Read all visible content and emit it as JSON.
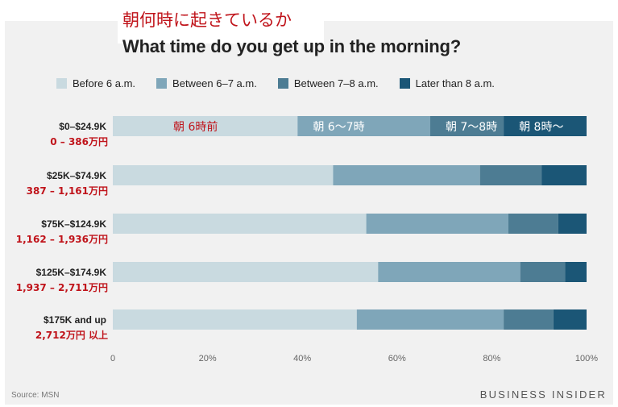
{
  "header": {
    "jp_title": "朝何時に起きているか",
    "title": "What time do you get up in the morning?"
  },
  "footer": {
    "source": "Source: MSN",
    "brand": "BUSINESS INSIDER"
  },
  "colors": {
    "frame_bg": "#f1f1f1",
    "annotation_red": "#c0141b"
  },
  "chart_data": {
    "type": "bar",
    "orientation": "horizontal",
    "stacked": true,
    "title": "What time do you get up in the morning?",
    "categories": [
      "$0–$24.9K",
      "$25K–$74.9K",
      "$75K–$124.9K",
      "$125K–$174.9K",
      "$175K and up"
    ],
    "category_annotations": [
      "0 – 386万円",
      "387 – 1,161万円",
      "1,162 – 1,936万円",
      "1,937 – 2,711万円",
      "2,712万円 以上"
    ],
    "series": [
      {
        "name": "Before 6 a.m.",
        "color": "#c9dae0",
        "values": [
          39,
          46.5,
          53.5,
          56,
          51.5
        ]
      },
      {
        "name": "Between 6–7 a.m.",
        "color": "#7fa6b9",
        "values": [
          28,
          31,
          30,
          30,
          31
        ]
      },
      {
        "name": "Between 7–8 a.m.",
        "color": "#4d7c93",
        "values": [
          15.5,
          13,
          10.5,
          9.5,
          10.5
        ]
      },
      {
        "name": "Later than 8 a.m.",
        "color": "#1b5676",
        "values": [
          17.5,
          9.5,
          6,
          4.5,
          7
        ]
      }
    ],
    "segment_annotations": [
      "朝 6時前",
      "朝 6～7時",
      "朝 7～8時",
      "朝 8時～"
    ],
    "xlim": [
      0,
      100
    ],
    "x_ticks": [
      "0",
      "20%",
      "40%",
      "60%",
      "80%",
      "100%"
    ],
    "grid": false,
    "legend_position": "top"
  }
}
